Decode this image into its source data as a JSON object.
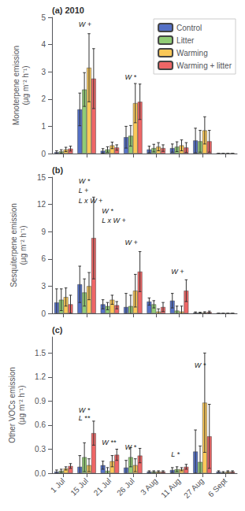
{
  "chart_data": [
    {
      "type": "bar",
      "title": "(a) 2010",
      "ylabel": "Monoterpene emission\n(μg m⁻² h⁻¹)",
      "categories": [
        "1 Jul",
        "15 Jul",
        "21 Jul",
        "26 Jul",
        "3 Aug",
        "11 Aug",
        "27 Aug",
        "6 Sept"
      ],
      "series": [
        {
          "name": "Control",
          "values": [
            0.05,
            1.62,
            0.1,
            0.6,
            0.15,
            0.2,
            0.48,
            0.0
          ],
          "errors": [
            0.05,
            0.6,
            0.08,
            0.4,
            0.12,
            0.15,
            0.45,
            0.0
          ]
        },
        {
          "name": "Litter",
          "values": [
            0.08,
            2.35,
            0.15,
            0.65,
            0.2,
            0.25,
            0.45,
            0.0
          ],
          "errors": [
            0.06,
            0.62,
            0.1,
            0.38,
            0.14,
            0.18,
            0.4,
            0.0
          ]
        },
        {
          "name": "Warming",
          "values": [
            0.15,
            3.15,
            0.3,
            1.85,
            0.25,
            0.3,
            0.85,
            0.0
          ],
          "errors": [
            0.08,
            1.25,
            0.12,
            0.72,
            0.15,
            0.2,
            0.5,
            0.0
          ]
        },
        {
          "name": "Warming + litter",
          "values": [
            0.18,
            2.75,
            0.22,
            1.9,
            0.2,
            0.22,
            0.45,
            0.0
          ],
          "errors": [
            0.09,
            1.1,
            0.1,
            0.65,
            0.12,
            0.18,
            0.4,
            0.0
          ]
        }
      ],
      "ylim": [
        0,
        5
      ],
      "yticks": [
        0,
        1,
        2,
        3,
        4,
        5
      ],
      "annotations": [
        {
          "text": "W +",
          "category": "15 Jul",
          "y": 4.62
        },
        {
          "text": "W *",
          "category": "26 Jul",
          "y": 2.68
        }
      ],
      "grid": false,
      "legend": "upper right",
      "tick_labels": "y"
    },
    {
      "type": "bar",
      "title": "(b)",
      "ylabel": "Sesquiterpene emission\n(μg m⁻² h⁻¹)",
      "categories": [
        "1 Jul",
        "15 Jul",
        "21 Jul",
        "26 Jul",
        "3 Aug",
        "11 Aug",
        "27 Aug",
        "6 Sept"
      ],
      "series": [
        {
          "name": "Control",
          "values": [
            1.2,
            3.2,
            1.0,
            0.7,
            1.3,
            1.4,
            0.08,
            0.0
          ],
          "errors": [
            1.5,
            2.0,
            0.5,
            1.5,
            0.4,
            0.8,
            0.08,
            0.0
          ]
        },
        {
          "name": "Litter",
          "values": [
            1.5,
            2.3,
            0.8,
            0.8,
            1.0,
            0.3,
            0.07,
            0.0
          ],
          "errors": [
            1.2,
            1.5,
            0.4,
            1.2,
            0.4,
            0.5,
            0.06,
            0.0
          ]
        },
        {
          "name": "Warming",
          "values": [
            1.8,
            3.0,
            1.5,
            2.5,
            0.2,
            0.2,
            0.1,
            0.0
          ],
          "errors": [
            1.0,
            1.5,
            0.5,
            1.8,
            0.3,
            0.6,
            0.08,
            0.0
          ]
        },
        {
          "name": "Warming + litter",
          "values": [
            1.0,
            8.3,
            0.9,
            4.6,
            0.7,
            2.5,
            0.15,
            0.0
          ],
          "errors": [
            1.0,
            4.5,
            0.4,
            2.2,
            0.5,
            1.2,
            0.1,
            0.0
          ]
        }
      ],
      "ylim": [
        0,
        15
      ],
      "yticks": [
        0,
        3,
        6,
        9,
        12,
        15
      ],
      "annotations": [
        {
          "text": "W *",
          "category": "15 Jul",
          "y": 14.2
        },
        {
          "text": "L +",
          "category": "15 Jul",
          "y": 13.1
        },
        {
          "text": "L x W +",
          "category": "15 Jul",
          "y": 12.0
        },
        {
          "text": "W *",
          "category": "21 Jul",
          "y": 10.9
        },
        {
          "text": "L x W +",
          "category": "21 Jul",
          "y": 9.8
        },
        {
          "text": "W +",
          "category": "26 Jul",
          "y": 7.4
        },
        {
          "text": "W +",
          "category": "11 Aug",
          "y": 4.2
        }
      ],
      "grid": false,
      "tick_labels": "y"
    },
    {
      "type": "bar",
      "title": "(c)",
      "ylabel": "Other VOCs emission\n(μg m⁻² h⁻¹)",
      "categories": [
        "1 Jul",
        "15 Jul",
        "21 Jul",
        "26 Jul",
        "3 Aug",
        "11 Aug",
        "27 Aug",
        "6 Sept"
      ],
      "series": [
        {
          "name": "Control",
          "values": [
            0.02,
            0.08,
            0.1,
            0.07,
            0.02,
            0.04,
            0.27,
            0.02
          ],
          "errors": [
            0.02,
            0.14,
            0.05,
            0.09,
            0.01,
            0.03,
            0.27,
            0.01
          ]
        },
        {
          "name": "Litter",
          "values": [
            0.03,
            0.2,
            0.03,
            0.2,
            0.02,
            0.05,
            0.14,
            0.01
          ],
          "errors": [
            0.02,
            0.18,
            0.04,
            0.12,
            0.01,
            0.03,
            0.2,
            0.01
          ]
        },
        {
          "name": "Warming",
          "values": [
            0.06,
            0.1,
            0.15,
            0.1,
            0.02,
            0.05,
            0.88,
            0.02
          ],
          "errors": [
            0.02,
            0.08,
            0.07,
            0.08,
            0.01,
            0.02,
            0.62,
            0.01
          ]
        },
        {
          "name": "Warming + litter",
          "values": [
            0.09,
            0.5,
            0.23,
            0.22,
            0.02,
            0.08,
            0.46,
            0.02
          ],
          "errors": [
            0.03,
            0.15,
            0.07,
            0.09,
            0.01,
            0.03,
            0.4,
            0.01
          ]
        }
      ],
      "ylim": [
        0,
        1.7
      ],
      "yticks": [
        {
          "value": 0,
          "label": "0.0"
        },
        0.3,
        0.6,
        0.9,
        1.2,
        1.5
      ],
      "annotations": [
        {
          "text": "W *",
          "category": "27 Aug",
          "y": 1.3
        },
        {
          "text": "W *",
          "category": "15 Jul",
          "y": 0.74
        },
        {
          "text": "L **",
          "category": "15 Jul",
          "y": 0.64
        },
        {
          "text": "W **",
          "category": "21 Jul",
          "y": 0.34
        },
        {
          "text": "W *",
          "category": "26 Jul",
          "y": 0.28
        },
        {
          "text": "L *",
          "category": "11 Aug",
          "y": 0.19
        }
      ],
      "grid": false
    }
  ]
}
